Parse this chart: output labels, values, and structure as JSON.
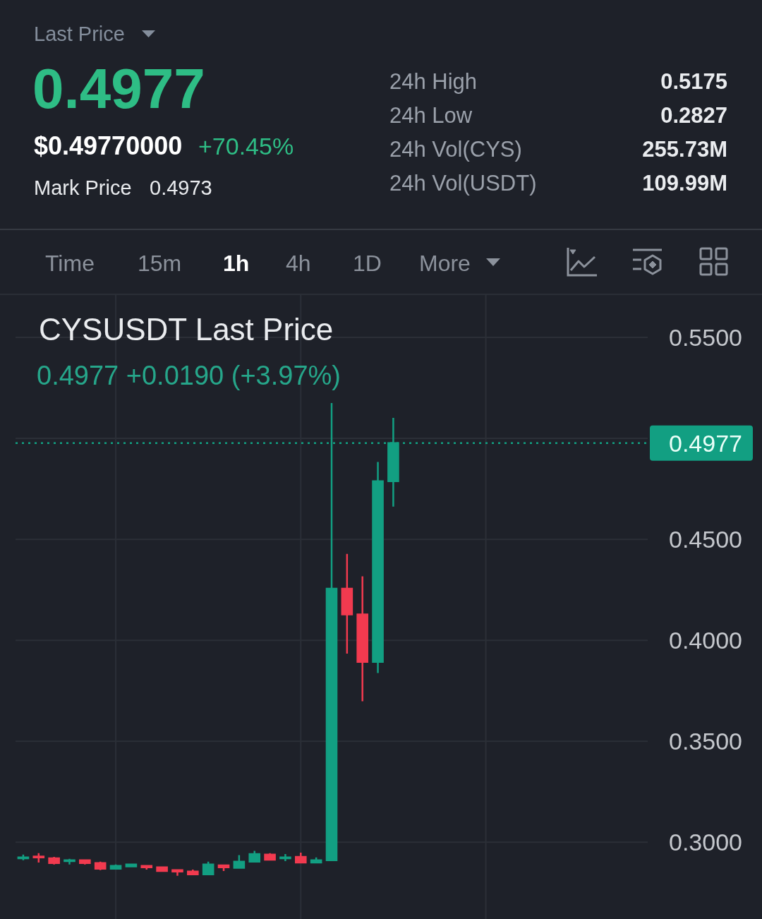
{
  "chart_data": {
    "type": "candlestick",
    "title": "CYSUSDT Last Price",
    "subtitle": "0.4977 +0.0190 (+3.97%)",
    "annotations": [
      "Last Price",
      "0.4977",
      "$0.49770000",
      "+70.45%",
      "Mark Price",
      "0.4973",
      "24h High",
      "0.5175",
      "24h Low",
      "0.2827",
      "24h Vol(CYS)",
      "255.73M",
      "24h Vol(USDT)",
      "109.99M",
      "Time",
      "15m",
      "1h",
      "4h",
      "1D",
      "More"
    ],
    "categories": [
      null,
      null,
      null,
      null,
      null,
      null,
      null,
      null,
      null,
      null,
      null,
      null,
      null,
      null,
      null,
      null,
      null,
      null,
      null,
      null,
      null,
      null,
      null,
      null,
      null,
      null,
      null,
      null,
      null,
      null,
      null,
      null,
      null,
      null,
      null,
      null,
      null,
      null,
      null,
      null,
      null
    ],
    "ohlc": [
      [
        0.2921,
        0.2939,
        0.2911,
        0.2925
      ],
      [
        0.2929,
        0.2946,
        0.29,
        0.2925
      ],
      [
        0.2921,
        0.2928,
        0.289,
        0.2897
      ],
      [
        0.2907,
        0.2918,
        0.289,
        0.2911
      ],
      [
        0.2911,
        0.2914,
        0.289,
        0.2897
      ],
      [
        0.2897,
        0.2904,
        0.2862,
        0.2869
      ],
      [
        0.2869,
        0.289,
        0.2869,
        0.2883
      ],
      [
        0.288,
        0.2893,
        0.2876,
        0.289
      ],
      [
        0.2883,
        0.2886,
        0.2865,
        0.2876
      ],
      [
        0.2876,
        0.2879,
        0.2855,
        0.2858
      ],
      [
        0.2862,
        0.2862,
        0.2834,
        0.2855
      ],
      [
        0.2855,
        0.2865,
        0.2841,
        0.2841
      ],
      [
        0.2841,
        0.2904,
        0.2837,
        0.289
      ],
      [
        0.2886,
        0.2886,
        0.2858,
        0.2876
      ],
      [
        0.2873,
        0.2936,
        0.2873,
        0.2904
      ],
      [
        0.2904,
        0.2957,
        0.2904,
        0.2942
      ],
      [
        0.2939,
        0.2946,
        0.2911,
        0.2914
      ],
      [
        0.2921,
        0.2942,
        0.2907,
        0.2925
      ],
      [
        0.2928,
        0.2949,
        0.2897,
        0.29
      ],
      [
        0.29,
        0.2925,
        0.29,
        0.2911
      ],
      [
        0.2911,
        0.5175,
        0.2911,
        0.4256
      ],
      [
        0.4256,
        0.4428,
        0.3934,
        0.4128
      ],
      [
        0.4128,
        0.4317,
        0.3698,
        0.3893
      ],
      [
        0.3893,
        0.4883,
        0.3838,
        0.4788
      ],
      [
        0.4788,
        0.5102,
        0.4662,
        0.4977
      ],
      null,
      null,
      null,
      null,
      null,
      null,
      null,
      null,
      null,
      null,
      null,
      null,
      null,
      null,
      null,
      null
    ],
    "colors": [
      "#129f82",
      "#f23a4f",
      "#f23a4f",
      "#129f82",
      "#f23a4f",
      "#f23a4f",
      "#129f82",
      "#129f82",
      "#f23a4f",
      "#f23a4f",
      "#f23a4f",
      "#f23a4f",
      "#129f82",
      "#f23a4f",
      "#129f82",
      "#129f82",
      "#f23a4f",
      "#129f82",
      "#f23a4f",
      "#129f82",
      "#129f82",
      "#f23a4f",
      "#f23a4f",
      "#129f82",
      "#129f82",
      null,
      null,
      null,
      null,
      null,
      null,
      null,
      null,
      null,
      null,
      null,
      null,
      null,
      null,
      null,
      null
    ],
    "ylim": [
      0.262,
      0.571
    ],
    "yticks": [
      {
        "value": 0.3,
        "label": "0.3000"
      },
      {
        "value": 0.35,
        "label": "0.3500"
      },
      {
        "value": 0.4,
        "label": "0.4000"
      },
      {
        "value": 0.45,
        "label": "0.4500"
      },
      {
        "value": 0.5,
        "label": null
      },
      {
        "value": 0.55,
        "label": "0.5500"
      }
    ],
    "grid": true,
    "tick_labels": "y",
    "ref_lines": [
      {
        "axis": "y",
        "value": 0.4977,
        "label": "0.4977",
        "color": "#129f82",
        "line_style": "dotted"
      }
    ]
  }
}
